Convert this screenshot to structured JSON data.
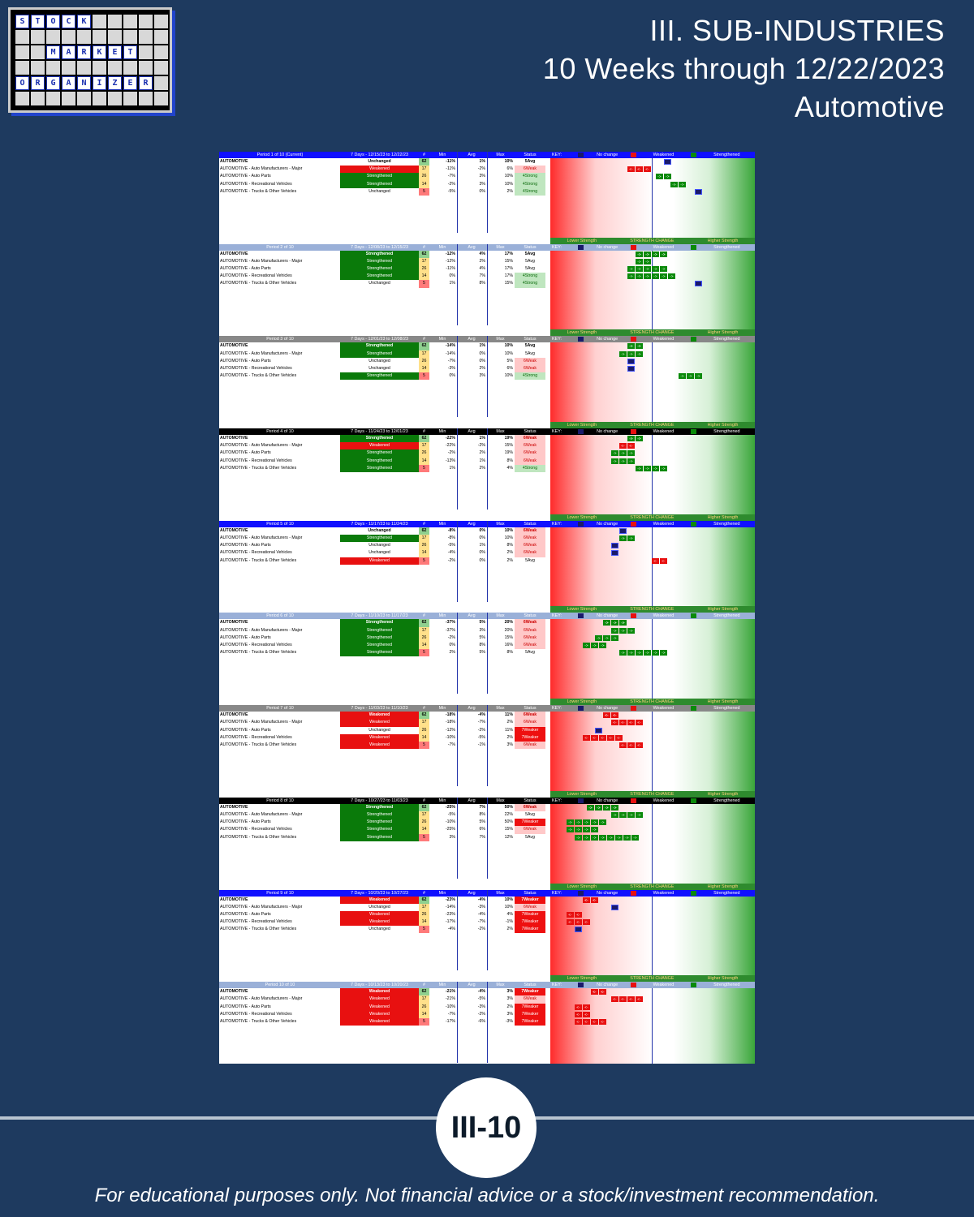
{
  "logo": {
    "rows": [
      [
        "S",
        "T",
        "O",
        "C",
        "K",
        "",
        "",
        "",
        "",
        ""
      ],
      [
        "",
        "",
        "",
        "",
        "",
        "",
        "",
        "",
        "",
        ""
      ],
      [
        "",
        "",
        "M",
        "A",
        "R",
        "K",
        "E",
        "T",
        "",
        ""
      ],
      [
        "",
        "",
        "",
        "",
        "",
        "",
        "",
        "",
        "",
        ""
      ],
      [
        "O",
        "R",
        "G",
        "A",
        "N",
        "I",
        "Z",
        "E",
        "R",
        ""
      ],
      [
        "",
        "",
        "",
        "",
        "",
        "",
        "",
        "",
        "",
        ""
      ]
    ]
  },
  "header": {
    "line1": "III. SUB-INDUSTRIES",
    "line2": "10 Weeks through 12/22/2023",
    "line3": "Automotive"
  },
  "table": {
    "col_headers": {
      "days": "7 Days",
      "n": "#",
      "min": "Min",
      "avg": "Avg",
      "max": "Max",
      "status": "Status",
      "key": "KEY:"
    },
    "legend": {
      "lower": "Lower Strength",
      "change": "STRENGTH CHANGE",
      "higher": "Higher Strength",
      "no_change": "No change",
      "weakened": "Weakened",
      "strengthened": "Strengthened"
    },
    "periods": [
      {
        "title": "Period 1 of 10 (Current)",
        "dates": "7 Days - 12/15/23 to 12/22/23",
        "hdr": "#1010ff",
        "rows": [
          {
            "name": "AUTOMOTIVE",
            "change": "Unchanged",
            "n": "62",
            "min": "-11%",
            "avg": "1%",
            "max": "10%",
            "status": "5Avg"
          },
          {
            "name": "AUTOMOTIVE - Auto Manufacturers - Major",
            "change": "Weakened",
            "n": "17",
            "min": "-11%",
            "avg": "-2%",
            "max": "6%",
            "status": "6Weak"
          },
          {
            "name": "AUTOMOTIVE - Auto Parts",
            "change": "Strengthened",
            "n": "26",
            "min": "-7%",
            "avg": "3%",
            "max": "10%",
            "status": "4Strong"
          },
          {
            "name": "AUTOMOTIVE - Recreational Vehicles",
            "change": "Strengthened",
            "n": "14",
            "min": "-2%",
            "avg": "3%",
            "max": "10%",
            "status": "4Strong"
          },
          {
            "name": "AUTOMOTIVE - Trucks & Other Vehicles",
            "change": "Unchanged",
            "n": "5",
            "min": "-5%",
            "avg": "0%",
            "max": "2%",
            "status": "4Strong"
          }
        ]
      },
      {
        "title": "Period 2 of 10",
        "dates": "7 Days - 12/08/23 to 12/15/23",
        "hdr": "#9ab0d8",
        "rows": [
          {
            "name": "AUTOMOTIVE",
            "change": "Strengthened",
            "n": "62",
            "min": "-12%",
            "avg": "4%",
            "max": "17%",
            "status": "5Avg"
          },
          {
            "name": "AUTOMOTIVE - Auto Manufacturers - Major",
            "change": "Strengthened",
            "n": "17",
            "min": "-12%",
            "avg": "2%",
            "max": "15%",
            "status": "5Avg"
          },
          {
            "name": "AUTOMOTIVE - Auto Parts",
            "change": "Strengthened",
            "n": "26",
            "min": "-11%",
            "avg": "4%",
            "max": "17%",
            "status": "5Avg"
          },
          {
            "name": "AUTOMOTIVE - Recreational Vehicles",
            "change": "Strengthened",
            "n": "14",
            "min": "0%",
            "avg": "7%",
            "max": "17%",
            "status": "4Strong"
          },
          {
            "name": "AUTOMOTIVE - Trucks & Other Vehicles",
            "change": "Unchanged",
            "n": "5",
            "min": "1%",
            "avg": "8%",
            "max": "15%",
            "status": "4Strong"
          }
        ]
      },
      {
        "title": "Period 3 of 10",
        "dates": "7 Days - 12/01/23 to 12/08/23",
        "hdr": "#888888",
        "rows": [
          {
            "name": "AUTOMOTIVE",
            "change": "Strengthened",
            "n": "62",
            "min": "-14%",
            "avg": "1%",
            "max": "10%",
            "status": "5Avg"
          },
          {
            "name": "AUTOMOTIVE - Auto Manufacturers - Major",
            "change": "Strengthened",
            "n": "17",
            "min": "-14%",
            "avg": "0%",
            "max": "10%",
            "status": "5Avg"
          },
          {
            "name": "AUTOMOTIVE - Auto Parts",
            "change": "Unchanged",
            "n": "26",
            "min": "-7%",
            "avg": "0%",
            "max": "5%",
            "status": "6Weak"
          },
          {
            "name": "AUTOMOTIVE - Recreational Vehicles",
            "change": "Unchanged",
            "n": "14",
            "min": "-3%",
            "avg": "2%",
            "max": "6%",
            "status": "6Weak"
          },
          {
            "name": "AUTOMOTIVE - Trucks & Other Vehicles",
            "change": "Strengthened",
            "n": "5",
            "min": "0%",
            "avg": "3%",
            "max": "10%",
            "status": "4Strong"
          }
        ]
      },
      {
        "title": "Period 4 of 10",
        "dates": "7 Days - 11/24/23 to 12/01/23",
        "hdr": "#000000",
        "rows": [
          {
            "name": "AUTOMOTIVE",
            "change": "Strengthened",
            "n": "62",
            "min": "-22%",
            "avg": "1%",
            "max": "19%",
            "status": "6Weak"
          },
          {
            "name": "AUTOMOTIVE - Auto Manufacturers - Major",
            "change": "Weakened",
            "n": "17",
            "min": "-22%",
            "avg": "-2%",
            "max": "15%",
            "status": "6Weak"
          },
          {
            "name": "AUTOMOTIVE - Auto Parts",
            "change": "Strengthened",
            "n": "26",
            "min": "-2%",
            "avg": "2%",
            "max": "19%",
            "status": "6Weak"
          },
          {
            "name": "AUTOMOTIVE - Recreational Vehicles",
            "change": "Strengthened",
            "n": "14",
            "min": "-13%",
            "avg": "1%",
            "max": "8%",
            "status": "6Weak"
          },
          {
            "name": "AUTOMOTIVE - Trucks & Other Vehicles",
            "change": "Strengthened",
            "n": "5",
            "min": "1%",
            "avg": "2%",
            "max": "4%",
            "status": "4Strong"
          }
        ]
      },
      {
        "title": "Period 5 of 10",
        "dates": "7 Days - 11/17/23 to 11/24/23",
        "hdr": "#1010ff",
        "rows": [
          {
            "name": "AUTOMOTIVE",
            "change": "Unchanged",
            "n": "62",
            "min": "-8%",
            "avg": "0%",
            "max": "10%",
            "status": "6Weak"
          },
          {
            "name": "AUTOMOTIVE - Auto Manufacturers - Major",
            "change": "Strengthened",
            "n": "17",
            "min": "-8%",
            "avg": "0%",
            "max": "10%",
            "status": "6Weak"
          },
          {
            "name": "AUTOMOTIVE - Auto Parts",
            "change": "Unchanged",
            "n": "26",
            "min": "-5%",
            "avg": "1%",
            "max": "8%",
            "status": "6Weak"
          },
          {
            "name": "AUTOMOTIVE - Recreational Vehicles",
            "change": "Unchanged",
            "n": "14",
            "min": "-4%",
            "avg": "0%",
            "max": "2%",
            "status": "6Weak"
          },
          {
            "name": "AUTOMOTIVE - Trucks & Other Vehicles",
            "change": "Weakened",
            "n": "5",
            "min": "-2%",
            "avg": "0%",
            "max": "2%",
            "status": "5Avg"
          }
        ]
      },
      {
        "title": "Period 6 of 10",
        "dates": "7 Days - 11/10/23 to 11/17/23",
        "hdr": "#9ab0d8",
        "rows": [
          {
            "name": "AUTOMOTIVE",
            "change": "Strengthened",
            "n": "62",
            "min": "-37%",
            "avg": "5%",
            "max": "20%",
            "status": "6Weak"
          },
          {
            "name": "AUTOMOTIVE - Auto Manufacturers - Major",
            "change": "Strengthened",
            "n": "17",
            "min": "-37%",
            "avg": "3%",
            "max": "20%",
            "status": "6Weak"
          },
          {
            "name": "AUTOMOTIVE - Auto Parts",
            "change": "Strengthened",
            "n": "26",
            "min": "-2%",
            "avg": "5%",
            "max": "15%",
            "status": "6Weak"
          },
          {
            "name": "AUTOMOTIVE - Recreational Vehicles",
            "change": "Strengthened",
            "n": "14",
            "min": "0%",
            "avg": "8%",
            "max": "16%",
            "status": "6Weak"
          },
          {
            "name": "AUTOMOTIVE - Trucks & Other Vehicles",
            "change": "Strengthened",
            "n": "5",
            "min": "2%",
            "avg": "5%",
            "max": "8%",
            "status": "5Avg"
          }
        ]
      },
      {
        "title": "Period 7 of 10",
        "dates": "7 Days - 11/03/23 to 11/10/23",
        "hdr": "#888888",
        "rows": [
          {
            "name": "AUTOMOTIVE",
            "change": "Weakened",
            "n": "62",
            "min": "-18%",
            "avg": "-4%",
            "max": "11%",
            "status": "6Weak"
          },
          {
            "name": "AUTOMOTIVE - Auto Manufacturers - Major",
            "change": "Weakened",
            "n": "17",
            "min": "-18%",
            "avg": "-7%",
            "max": "2%",
            "status": "6Weak"
          },
          {
            "name": "AUTOMOTIVE - Auto Parts",
            "change": "Unchanged",
            "n": "26",
            "min": "-12%",
            "avg": "-2%",
            "max": "11%",
            "status": "7Weaker"
          },
          {
            "name": "AUTOMOTIVE - Recreational Vehicles",
            "change": "Weakened",
            "n": "14",
            "min": "-10%",
            "avg": "-5%",
            "max": "2%",
            "status": "7Weaker"
          },
          {
            "name": "AUTOMOTIVE - Trucks & Other Vehicles",
            "change": "Weakened",
            "n": "5",
            "min": "-7%",
            "avg": "-1%",
            "max": "3%",
            "status": "6Weak"
          }
        ]
      },
      {
        "title": "Period 8 of 10",
        "dates": "7 Days - 10/27/23 to 11/03/23",
        "hdr": "#000000",
        "rows": [
          {
            "name": "AUTOMOTIVE",
            "change": "Strengthened",
            "n": "62",
            "min": "-25%",
            "avg": "7%",
            "max": "50%",
            "status": "6Weak"
          },
          {
            "name": "AUTOMOTIVE - Auto Manufacturers - Major",
            "change": "Strengthened",
            "n": "17",
            "min": "-5%",
            "avg": "8%",
            "max": "22%",
            "status": "5Avg"
          },
          {
            "name": "AUTOMOTIVE - Auto Parts",
            "change": "Strengthened",
            "n": "26",
            "min": "-10%",
            "avg": "5%",
            "max": "50%",
            "status": "7Weaker"
          },
          {
            "name": "AUTOMOTIVE - Recreational Vehicles",
            "change": "Strengthened",
            "n": "14",
            "min": "-25%",
            "avg": "6%",
            "max": "15%",
            "status": "6Weak"
          },
          {
            "name": "AUTOMOTIVE - Trucks & Other Vehicles",
            "change": "Strengthened",
            "n": "5",
            "min": "3%",
            "avg": "7%",
            "max": "12%",
            "status": "5Avg"
          }
        ]
      },
      {
        "title": "Period 9 of 10",
        "dates": "7 Days - 10/20/23 to 10/27/23",
        "hdr": "#1010ff",
        "rows": [
          {
            "name": "AUTOMOTIVE",
            "change": "Weakened",
            "n": "62",
            "min": "-23%",
            "avg": "-4%",
            "max": "10%",
            "status": "7Weaker"
          },
          {
            "name": "AUTOMOTIVE - Auto Manufacturers - Major",
            "change": "Unchanged",
            "n": "17",
            "min": "-14%",
            "avg": "-3%",
            "max": "10%",
            "status": "6Weak"
          },
          {
            "name": "AUTOMOTIVE - Auto Parts",
            "change": "Weakened",
            "n": "26",
            "min": "-23%",
            "avg": "-4%",
            "max": "4%",
            "status": "7Weaker"
          },
          {
            "name": "AUTOMOTIVE - Recreational Vehicles",
            "change": "Weakened",
            "n": "14",
            "min": "-17%",
            "avg": "-7%",
            "max": "-1%",
            "status": "7Weaker"
          },
          {
            "name": "AUTOMOTIVE - Trucks & Other Vehicles",
            "change": "Unchanged",
            "n": "5",
            "min": "-4%",
            "avg": "-2%",
            "max": "2%",
            "status": "7Weaker"
          }
        ]
      },
      {
        "title": "Period 10 of 10",
        "dates": "7 Days - 10/13/23 to 10/20/23",
        "hdr": "#9ab0d8",
        "rows": [
          {
            "name": "AUTOMOTIVE",
            "change": "Weakened",
            "n": "62",
            "min": "-21%",
            "avg": "-4%",
            "max": "3%",
            "status": "7Weaker"
          },
          {
            "name": "AUTOMOTIVE - Auto Manufacturers - Major",
            "change": "Weakened",
            "n": "17",
            "min": "-21%",
            "avg": "-5%",
            "max": "3%",
            "status": "6Weak"
          },
          {
            "name": "AUTOMOTIVE - Auto Parts",
            "change": "Weakened",
            "n": "26",
            "min": "-10%",
            "avg": "-3%",
            "max": "2%",
            "status": "7Weaker"
          },
          {
            "name": "AUTOMOTIVE - Recreational Vehicles",
            "change": "Weakened",
            "n": "14",
            "min": "-7%",
            "avg": "-2%",
            "max": "3%",
            "status": "7Weaker"
          },
          {
            "name": "AUTOMOTIVE - Trucks & Other Vehicles",
            "change": "Weakened",
            "n": "5",
            "min": "-17%",
            "avg": "-6%",
            "max": "-3%",
            "status": "7Weaker"
          }
        ]
      }
    ]
  },
  "badge": "III-10",
  "footer": "For educational purposes only. Not financial advice or a stock/investment recommendation."
}
